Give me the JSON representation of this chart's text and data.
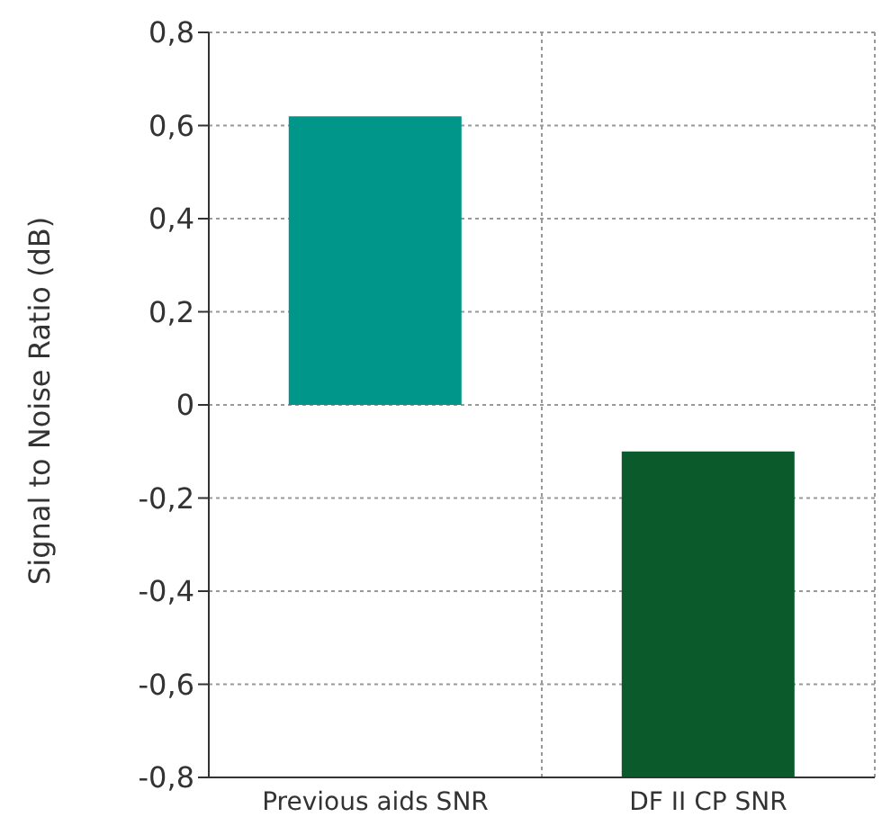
{
  "chart_data": {
    "type": "bar",
    "ylabel": "Signal to Noise Ratio (dB)",
    "categories": [
      "Previous aids SNR",
      "DF II CP SNR"
    ],
    "values": [
      0.62,
      0.7
    ],
    "base": [
      0,
      -0.8
    ],
    "colors": [
      "#00978a",
      "#0b5a2c"
    ],
    "ylim": [
      -0.8,
      0.8
    ],
    "yticks": [
      {
        "value": -0.8,
        "label": "-0,8"
      },
      {
        "value": -0.6,
        "label": "-0,6"
      },
      {
        "value": -0.4,
        "label": "-0,4"
      },
      {
        "value": -0.2,
        "label": "-0,2"
      },
      0,
      {
        "value": 0.2,
        "label": "0,2"
      },
      {
        "value": 0.4,
        "label": "0,4"
      },
      {
        "value": 0.6,
        "label": "0,6"
      },
      {
        "value": 0.8,
        "label": "0,8"
      }
    ],
    "grid": true
  }
}
